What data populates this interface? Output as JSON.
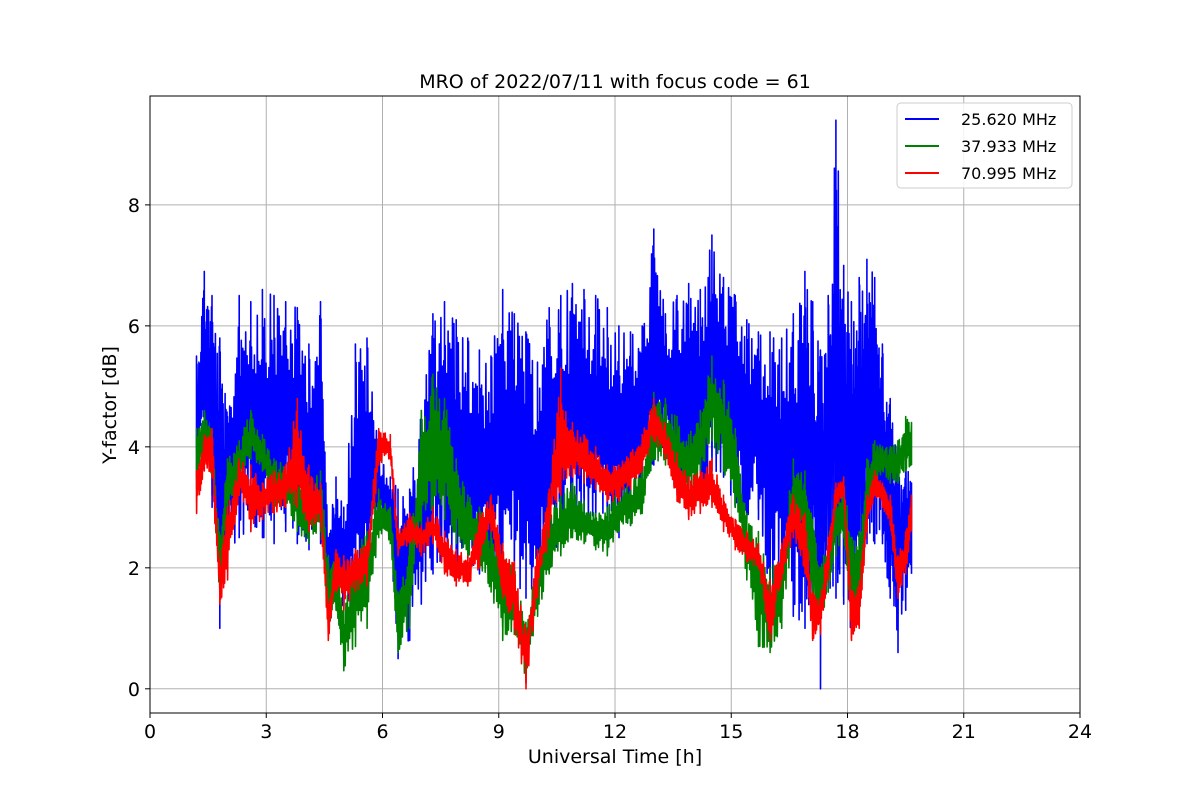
{
  "chart_data": {
    "type": "line",
    "title": "MRO of 2022/07/11 with focus code = 61",
    "xlabel": "Universal Time [h]",
    "ylabel": "Y-factor [dB]",
    "xlim": [
      0,
      24
    ],
    "ylim": [
      -0.4,
      9.8
    ],
    "xticks": [
      0,
      3,
      6,
      9,
      12,
      15,
      18,
      21,
      24
    ],
    "yticks": [
      0,
      2,
      4,
      6,
      8
    ],
    "grid": true,
    "legend_position": "top-right",
    "series": [
      {
        "name": "25.620 MHz",
        "color": "#0000ff",
        "x": [
          1.2,
          1.4,
          1.6,
          1.8,
          2.0,
          2.3,
          2.6,
          2.9,
          3.2,
          3.5,
          3.8,
          4.1,
          4.4,
          4.6,
          4.8,
          5.0,
          5.3,
          5.6,
          5.9,
          6.2,
          6.4,
          6.7,
          7.0,
          7.3,
          7.6,
          7.9,
          8.2,
          8.5,
          8.8,
          9.1,
          9.4,
          9.7,
          10.0,
          10.3,
          10.6,
          10.9,
          11.2,
          11.5,
          11.8,
          12.1,
          12.4,
          12.7,
          13.0,
          13.3,
          13.6,
          13.9,
          14.2,
          14.5,
          14.8,
          15.1,
          15.4,
          15.7,
          16.0,
          16.3,
          16.6,
          16.9,
          17.1,
          17.3,
          17.5,
          17.7,
          17.9,
          18.1,
          18.3,
          18.5,
          18.7,
          18.9,
          19.1,
          19.3,
          19.5,
          19.65
        ],
        "min": [
          3.5,
          4.0,
          3.0,
          1.0,
          2.2,
          2.5,
          2.6,
          2.5,
          2.4,
          2.6,
          2.4,
          2.3,
          2.4,
          1.3,
          1.8,
          1.3,
          1.2,
          2.0,
          2.8,
          2.5,
          0.5,
          0.8,
          1.4,
          1.9,
          2.2,
          2.0,
          1.8,
          1.9,
          1.7,
          1.7,
          1.8,
          1.5,
          1.6,
          2.0,
          2.3,
          2.6,
          2.7,
          2.6,
          2.3,
          2.5,
          2.7,
          3.0,
          3.7,
          3.8,
          3.2,
          2.9,
          3.2,
          3.6,
          3.5,
          3.0,
          2.8,
          2.8,
          1.2,
          1.8,
          1.2,
          1.0,
          1.5,
          0.0,
          1.6,
          1.5,
          1.4,
          0.9,
          1.5,
          2.4,
          2.4,
          2.4,
          1.5,
          0.6,
          1.3,
          1.9
        ],
        "max": [
          5.5,
          6.9,
          6.5,
          5.8,
          4.5,
          6.5,
          6.4,
          6.6,
          6.5,
          6.4,
          6.3,
          5.7,
          6.4,
          2.5,
          3.5,
          3.0,
          5.7,
          5.8,
          4.0,
          3.5,
          3.3,
          3.3,
          4.6,
          6.2,
          6.4,
          6.1,
          5.8,
          5.6,
          5.5,
          6.6,
          6.2,
          5.9,
          5.4,
          6.3,
          6.5,
          6.7,
          6.6,
          6.5,
          6.3,
          6.0,
          5.9,
          6.0,
          7.6,
          6.2,
          6.5,
          6.7,
          6.6,
          7.5,
          6.8,
          6.5,
          6.1,
          5.9,
          5.9,
          5.8,
          6.2,
          6.9,
          6.4,
          5.6,
          6.5,
          9.4,
          7.0,
          6.4,
          6.8,
          7.1,
          6.8,
          5.7,
          4.8,
          3.8,
          3.8,
          3.4
        ]
      },
      {
        "name": "37.933 MHz",
        "color": "#008000",
        "x": [
          1.2,
          1.4,
          1.6,
          1.8,
          2.0,
          2.3,
          2.6,
          2.9,
          3.2,
          3.5,
          3.8,
          4.1,
          4.4,
          4.6,
          4.8,
          5.0,
          5.3,
          5.6,
          5.9,
          6.2,
          6.4,
          6.7,
          7.0,
          7.3,
          7.6,
          7.9,
          8.2,
          8.5,
          8.8,
          9.1,
          9.4,
          9.7,
          10.0,
          10.3,
          10.6,
          10.9,
          11.2,
          11.5,
          11.8,
          12.1,
          12.4,
          12.7,
          13.0,
          13.3,
          13.6,
          13.9,
          14.2,
          14.5,
          14.8,
          15.1,
          15.4,
          15.7,
          16.0,
          16.3,
          16.6,
          16.9,
          17.1,
          17.3,
          17.5,
          17.7,
          17.9,
          18.1,
          18.3,
          18.5,
          18.7,
          18.9,
          19.1,
          19.3,
          19.5,
          19.65
        ],
        "min": [
          3.3,
          3.9,
          3.5,
          1.5,
          3.0,
          3.3,
          3.8,
          3.6,
          3.0,
          3.1,
          2.6,
          2.4,
          2.6,
          1.0,
          1.3,
          0.3,
          0.7,
          1.0,
          2.5,
          2.4,
          0.6,
          1.0,
          2.6,
          3.0,
          2.8,
          2.4,
          2.2,
          2.0,
          1.6,
          0.8,
          0.9,
          0.1,
          1.2,
          1.9,
          2.2,
          2.5,
          2.4,
          2.3,
          2.2,
          2.6,
          2.7,
          2.9,
          3.8,
          3.7,
          3.4,
          3.2,
          3.4,
          4.1,
          3.6,
          3.0,
          1.8,
          0.7,
          0.6,
          1.0,
          2.6,
          2.4,
          1.4,
          1.0,
          1.6,
          2.2,
          2.5,
          1.1,
          1.3,
          2.6,
          3.3,
          3.6,
          3.4,
          3.4,
          3.6,
          3.7
        ],
        "max": [
          4.3,
          4.6,
          4.3,
          2.5,
          3.8,
          4.1,
          4.6,
          4.2,
          3.8,
          3.7,
          3.5,
          3.4,
          3.6,
          2.2,
          2.1,
          1.3,
          2.3,
          2.6,
          3.3,
          3.0,
          1.6,
          2.4,
          4.6,
          5.2,
          4.8,
          3.8,
          3.2,
          3.0,
          2.6,
          2.2,
          2.0,
          1.1,
          2.2,
          2.9,
          3.2,
          3.4,
          3.1,
          2.9,
          3.0,
          3.3,
          3.4,
          3.6,
          4.9,
          4.8,
          4.5,
          4.2,
          4.6,
          5.5,
          5.1,
          4.3,
          2.9,
          2.6,
          2.0,
          2.3,
          3.8,
          3.6,
          2.8,
          2.0,
          2.5,
          3.2,
          3.5,
          2.5,
          2.6,
          3.8,
          4.1,
          4.0,
          4.0,
          4.1,
          4.5,
          4.4
        ]
      },
      {
        "name": "70.995 MHz",
        "color": "#ff0000",
        "x": [
          1.2,
          1.4,
          1.6,
          1.8,
          2.0,
          2.3,
          2.6,
          2.9,
          3.2,
          3.5,
          3.8,
          4.1,
          4.4,
          4.6,
          4.8,
          5.0,
          5.3,
          5.6,
          5.9,
          6.2,
          6.4,
          6.7,
          7.0,
          7.3,
          7.6,
          7.9,
          8.2,
          8.5,
          8.8,
          9.1,
          9.4,
          9.7,
          10.0,
          10.3,
          10.6,
          10.9,
          11.2,
          11.5,
          11.8,
          12.1,
          12.4,
          12.7,
          13.0,
          13.3,
          13.6,
          13.9,
          14.2,
          14.5,
          14.8,
          15.1,
          15.4,
          15.7,
          16.0,
          16.3,
          16.6,
          16.9,
          17.1,
          17.3,
          17.5,
          17.7,
          17.9,
          18.1,
          18.3,
          18.5,
          18.7,
          18.9,
          19.1,
          19.3,
          19.5,
          19.65
        ],
        "min": [
          2.9,
          3.6,
          3.5,
          1.4,
          1.8,
          3.2,
          2.6,
          2.8,
          2.9,
          3.0,
          3.0,
          2.6,
          2.8,
          0.8,
          1.6,
          1.3,
          1.6,
          1.7,
          3.7,
          3.8,
          2.2,
          2.4,
          2.2,
          2.4,
          1.9,
          1.7,
          1.7,
          2.0,
          2.6,
          1.5,
          1.0,
          0.0,
          1.5,
          2.5,
          3.2,
          3.5,
          3.4,
          3.3,
          3.1,
          3.1,
          3.3,
          3.6,
          4.1,
          3.8,
          3.1,
          2.8,
          2.9,
          3.0,
          2.6,
          2.3,
          2.1,
          2.0,
          0.8,
          1.8,
          2.5,
          1.9,
          0.8,
          0.9,
          1.8,
          3.0,
          3.2,
          0.8,
          1.0,
          2.6,
          3.2,
          3.0,
          2.7,
          1.5,
          1.9,
          2.6
        ],
        "max": [
          3.6,
          4.2,
          4.3,
          2.0,
          3.0,
          3.8,
          3.7,
          3.4,
          3.6,
          3.7,
          4.8,
          3.7,
          3.4,
          1.4,
          2.3,
          2.2,
          2.3,
          2.4,
          4.3,
          4.2,
          2.6,
          2.9,
          2.7,
          3.0,
          2.6,
          2.3,
          2.2,
          2.9,
          3.2,
          2.4,
          2.1,
          1.0,
          2.3,
          3.3,
          5.3,
          4.4,
          4.2,
          4.0,
          3.7,
          3.7,
          3.9,
          4.2,
          4.8,
          4.4,
          3.9,
          3.5,
          3.6,
          3.8,
          3.2,
          2.8,
          2.6,
          2.4,
          1.8,
          2.4,
          3.2,
          2.9,
          1.6,
          1.5,
          2.5,
          3.4,
          3.5,
          1.6,
          1.7,
          3.2,
          3.6,
          3.4,
          3.2,
          2.2,
          2.6,
          3.2
        ]
      }
    ]
  }
}
